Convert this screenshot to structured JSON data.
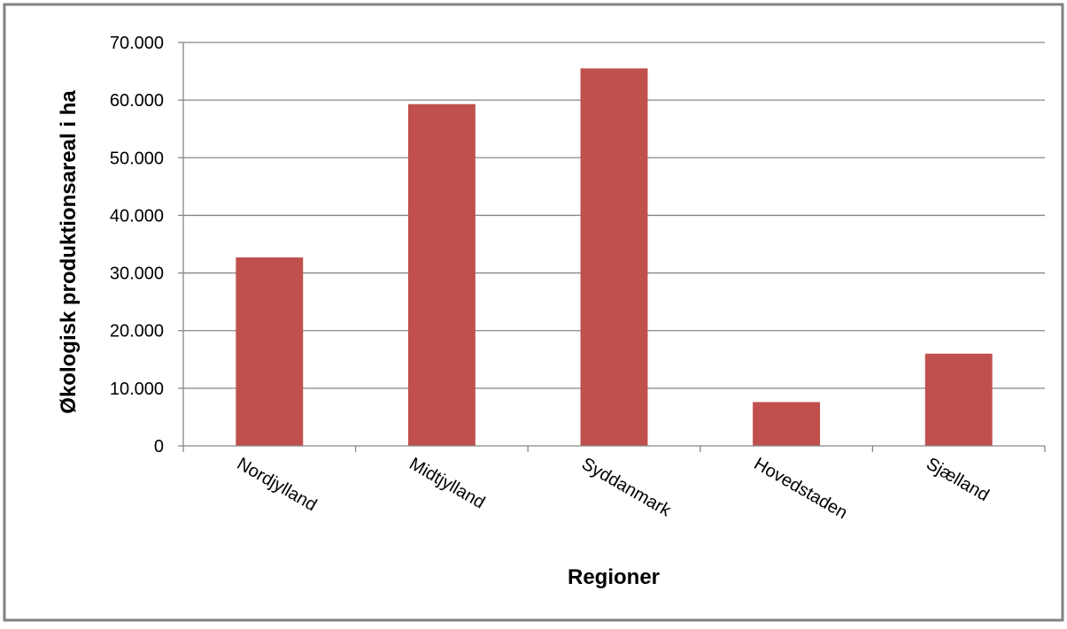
{
  "chart_data": {
    "type": "bar",
    "categories": [
      "Nordjylland",
      "Midtjylland",
      "Syddanmark",
      "Hovedstaden",
      "Sjælland"
    ],
    "series": [
      {
        "values": [
          32700,
          59300,
          65500,
          7600,
          16000
        ],
        "color": "#c0504d"
      }
    ],
    "y_ticks": [
      "0",
      "10.000",
      "20.000",
      "30.000",
      "40.000",
      "50.000",
      "60.000",
      "70.000"
    ],
    "xlabel": "Regioner",
    "ylabel": "Økologisk produktionsareal i ha",
    "ylim": [
      0,
      70000
    ],
    "grid": true,
    "gridline_color": "#868686",
    "border_color": "#808080",
    "legend": "none"
  }
}
